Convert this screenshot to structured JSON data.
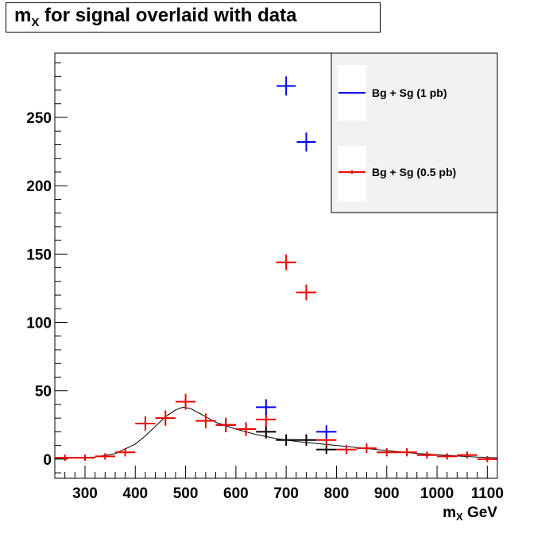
{
  "title": {
    "main": "m",
    "sub": "X",
    "rest": " for signal overlaid with data"
  },
  "chart_data": {
    "type": "scatter",
    "title": "mX for signal overlaid with data",
    "xlabel": {
      "main": "m",
      "sub": "X",
      "rest": " GeV"
    },
    "ylabel": "",
    "xlim": [
      240,
      1120
    ],
    "ylim": [
      -14,
      297
    ],
    "x_ticks": [
      300,
      400,
      500,
      600,
      700,
      800,
      900,
      1000,
      1100
    ],
    "y_ticks": [
      0,
      50,
      100,
      150,
      200,
      250
    ],
    "bin_width": 40,
    "grid": false,
    "legend_position": "top-right",
    "colors": {
      "blue": "#0000ee",
      "red": "#ee0000",
      "black": "#000000",
      "legend_bg": "#f2f2f2"
    },
    "series": [
      {
        "name": "Bg + Sg (1 pb)",
        "color": "#0000ee",
        "x": [
          660,
          700,
          740,
          780
        ],
        "y": [
          38,
          273,
          232,
          20
        ]
      },
      {
        "name": "Bg + Sg (0.5 pb)",
        "color": "#ee0000",
        "x": [
          260,
          300,
          340,
          380,
          420,
          460,
          500,
          540,
          580,
          620,
          660,
          700,
          740,
          780,
          820,
          860,
          900,
          940,
          980,
          1020,
          1060,
          1100
        ],
        "y": [
          1,
          1,
          2,
          5,
          26,
          30,
          42,
          28,
          25,
          22,
          29,
          144,
          122,
          14,
          7,
          8,
          5,
          5,
          3,
          2,
          3,
          0
        ]
      },
      {
        "color": "#000000",
        "x": [
          580,
          620,
          660,
          700,
          740,
          780
        ],
        "y": [
          25,
          22,
          20,
          14,
          14,
          7
        ]
      }
    ],
    "fit_curve": {
      "color": "#000000",
      "x": [
        240,
        280,
        320,
        360,
        400,
        420,
        440,
        460,
        480,
        495,
        510,
        530,
        560,
        600,
        640,
        680,
        720,
        760,
        800,
        840,
        880,
        920,
        960,
        1000,
        1040,
        1080,
        1120
      ],
      "y": [
        0.5,
        0.8,
        1.5,
        4,
        11,
        17,
        24,
        31,
        36,
        38,
        37,
        33,
        27,
        22,
        18,
        15,
        13,
        11.5,
        10,
        8.5,
        7,
        5.5,
        4.2,
        3.2,
        2.3,
        1.5,
        1.0
      ]
    }
  }
}
